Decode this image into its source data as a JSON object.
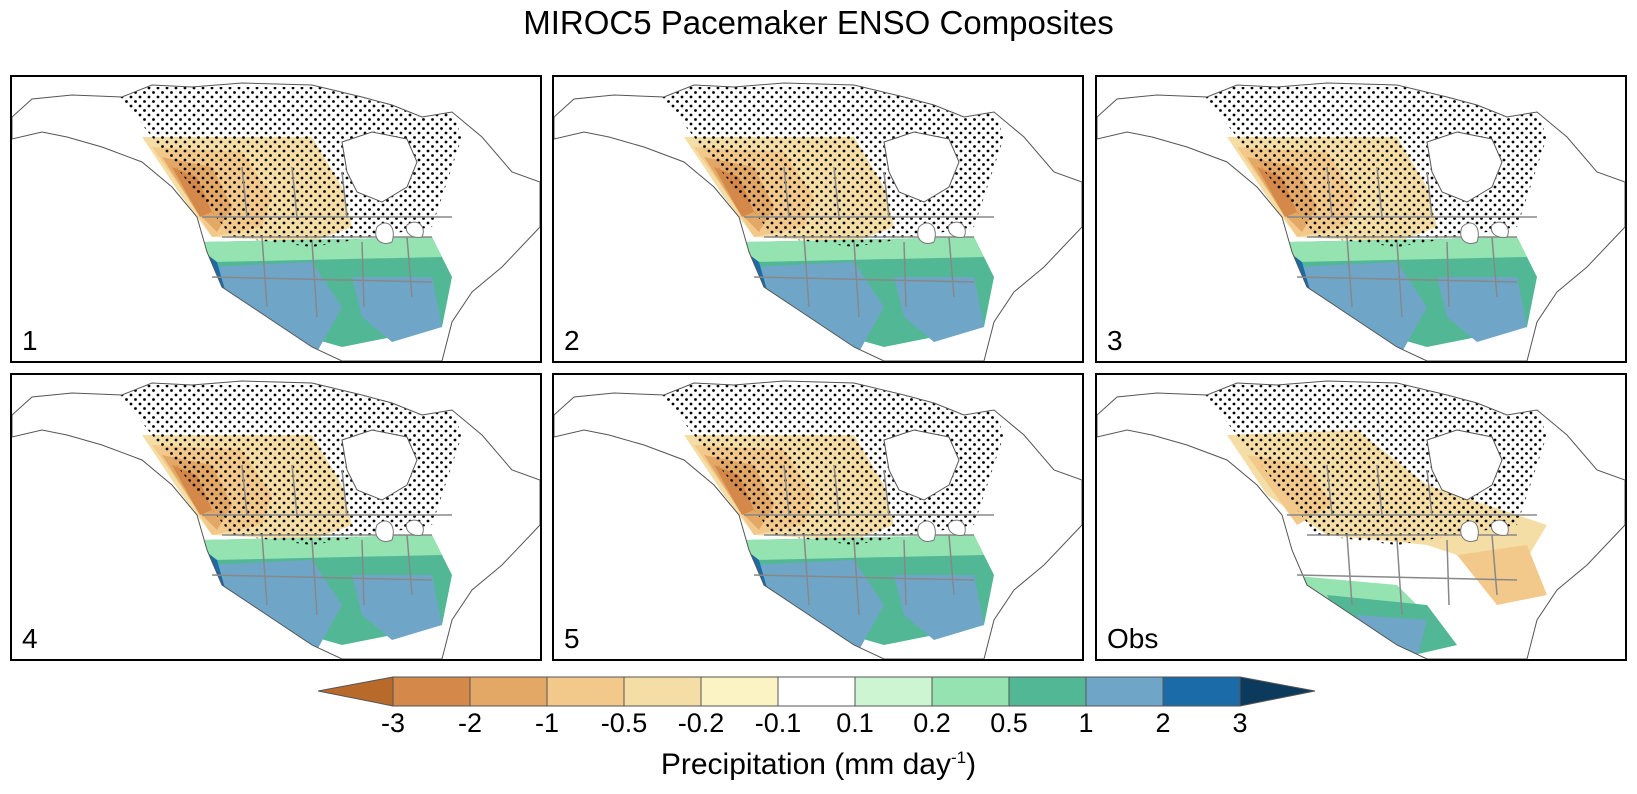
{
  "title": "MIROC5 Pacemaker ENSO Composites",
  "panels": [
    {
      "label": "1"
    },
    {
      "label": "2"
    },
    {
      "label": "3"
    },
    {
      "label": "4"
    },
    {
      "label": "5"
    },
    {
      "label": "Obs"
    }
  ],
  "colorbar": {
    "ticks": [
      "-3",
      "-2",
      "-1",
      "-0.5",
      "-0.2",
      "-0.1",
      "0.1",
      "0.2",
      "0.5",
      "1",
      "2",
      "3"
    ],
    "colors": [
      "#b86a2a",
      "#d4884a",
      "#e3a865",
      "#f2c98a",
      "#f5dea6",
      "#fcf3c4",
      "#ffffff",
      "#cdf5d2",
      "#95e3b0",
      "#52b795",
      "#6fa6c7",
      "#1b6ba8",
      "#0b3a5c"
    ],
    "label_main": "Precipitation (mm day",
    "label_sup": "-1",
    "label_end": ")"
  }
}
